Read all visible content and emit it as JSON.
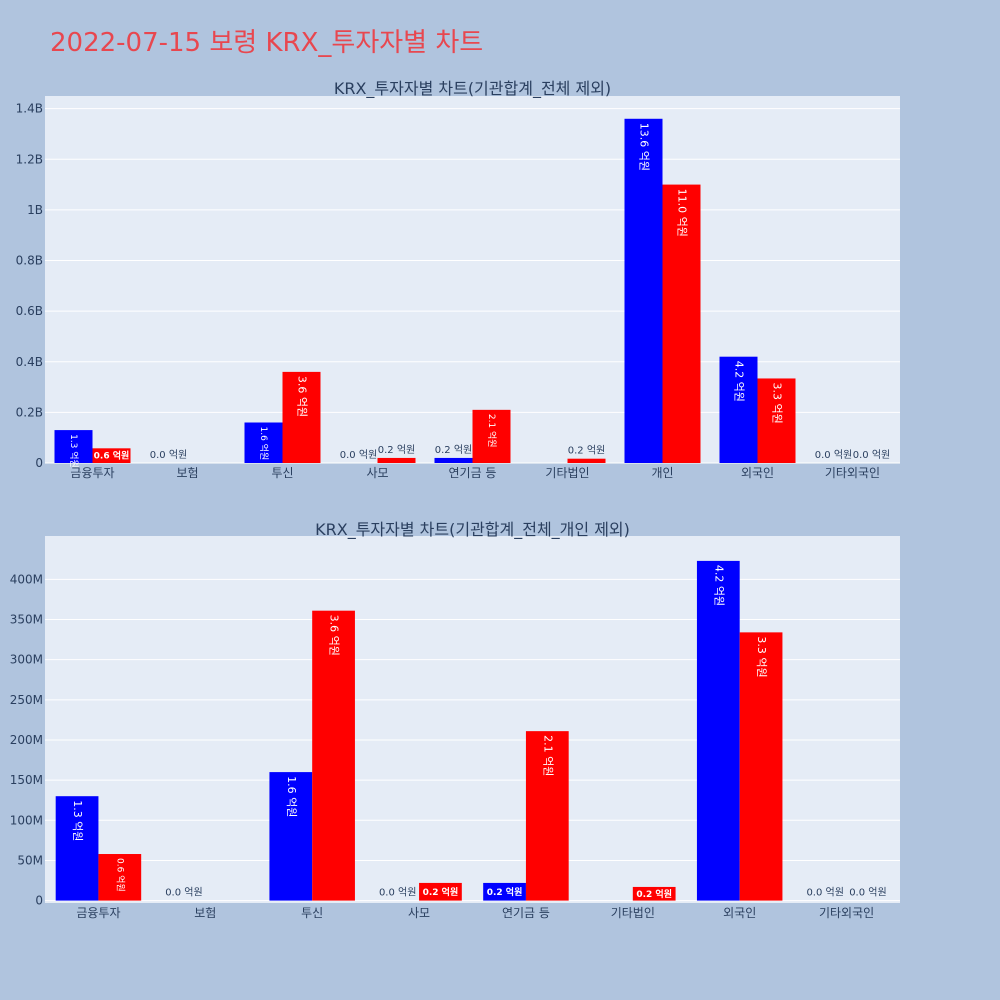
{
  "page_title": "2022-07-15 보령 KRX_투자자별 차트",
  "colors": {
    "buy": "#0000ff",
    "sell": "#ff0000",
    "title": "#e8474f",
    "plot_bg": "#e5ecf6",
    "page_bg": "#b0c4de"
  },
  "chart_data": [
    {
      "type": "bar",
      "title": "KRX_투자자별 차트(기관합계_전체 제외)",
      "categories": [
        "금융투자",
        "보험",
        "투신",
        "사모",
        "연기금 등",
        "기타법인",
        "개인",
        "외국인",
        "기타외국인"
      ],
      "series": [
        {
          "values": [
            130000000,
            0,
            160000000,
            0,
            20000000,
            null,
            1360000000,
            420000000,
            0
          ],
          "labels": [
            "1.3 억원",
            "0.0 억원",
            "1.6 억원",
            "0.0 억원",
            "0.2 억원",
            "",
            "13.6 억원",
            "4.2 억원",
            "0.0 억원"
          ]
        },
        {
          "values": [
            58000000,
            null,
            360000000,
            20000000,
            210000000,
            17000000,
            1100000000,
            334000000,
            0
          ],
          "labels": [
            "0.6 억원",
            "",
            "3.6 억원",
            "0.2 억원",
            "2.1 억원",
            "0.2 억원",
            "11.0 억원",
            "3.3 억원",
            "0.0 억원"
          ]
        }
      ],
      "ylim": [
        0,
        1450000000
      ],
      "yticks": [
        0,
        200000000,
        400000000,
        600000000,
        800000000,
        1000000000,
        1200000000,
        1400000000
      ],
      "ytick_labels": [
        "0",
        "0.2B",
        "0.4B",
        "0.6B",
        "0.8B",
        "1B",
        "1.2B",
        "1.4B"
      ],
      "grid": true
    },
    {
      "type": "bar",
      "title": "KRX_투자자별 차트(기관합계_전체_개인 제외)",
      "categories": [
        "금융투자",
        "보험",
        "투신",
        "사모",
        "연기금 등",
        "기타법인",
        "외국인",
        "기타외국인"
      ],
      "series": [
        {
          "values": [
            130000000,
            0,
            160000000,
            0,
            22000000,
            null,
            423000000,
            0
          ],
          "labels": [
            "1.3 억원",
            "0.0 억원",
            "1.6 억원",
            "0.0 억원",
            "0.2 억원",
            "",
            "4.2 억원",
            "0.0 억원"
          ]
        },
        {
          "values": [
            58000000,
            null,
            361000000,
            22000000,
            211000000,
            17000000,
            334000000,
            0
          ],
          "labels": [
            "0.6 억원",
            "",
            "3.6 억원",
            "0.2 억원",
            "2.1 억원",
            "0.2 억원",
            "3.3 억원",
            "0.0 억원"
          ]
        }
      ],
      "ylim": [
        -3000000,
        454000000
      ],
      "yticks": [
        0,
        50000000,
        100000000,
        150000000,
        200000000,
        250000000,
        300000000,
        350000000,
        400000000
      ],
      "ytick_labels": [
        "0",
        "50M",
        "100M",
        "150M",
        "200M",
        "250M",
        "300M",
        "350M",
        "400M"
      ],
      "grid": true
    }
  ]
}
